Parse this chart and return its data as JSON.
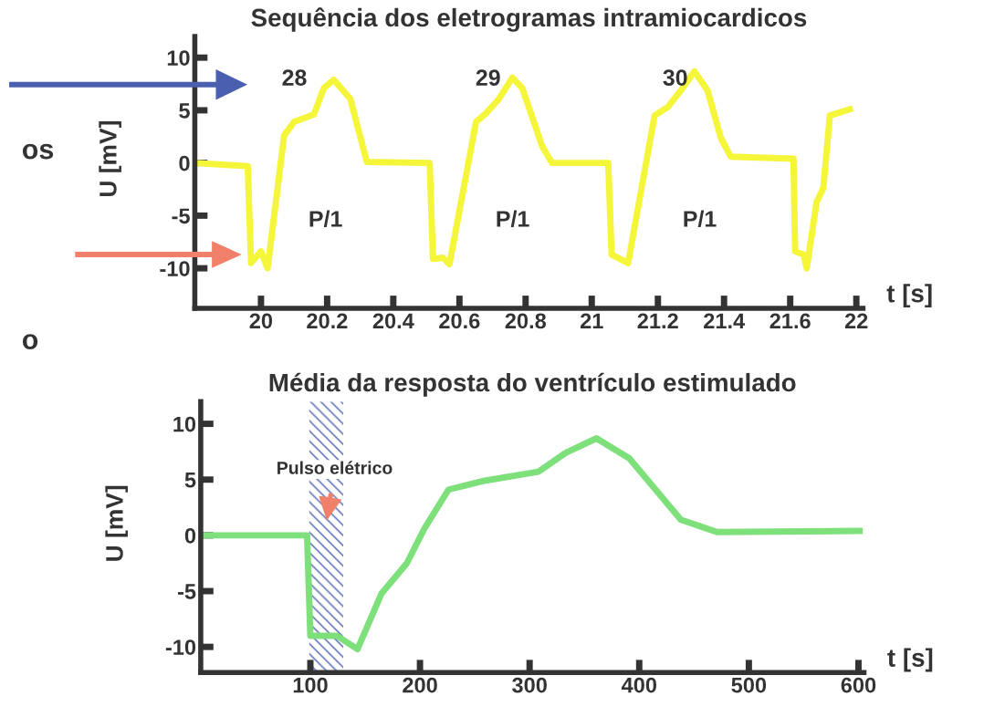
{
  "chart_data": [
    {
      "type": "line",
      "title": "Sequência dos eletrogramas intramiocardicos",
      "xlabel": "t [s]",
      "ylabel": "U [mV]",
      "x": [
        19.8,
        19.96,
        19.97,
        20.0,
        20.02,
        20.07,
        20.1,
        20.16,
        20.19,
        20.22,
        20.27,
        20.32,
        20.51,
        20.52,
        20.55,
        20.57,
        20.65,
        20.68,
        20.72,
        20.76,
        20.79,
        20.85,
        20.88,
        21.05,
        21.06,
        21.11,
        21.19,
        21.23,
        21.27,
        21.31,
        21.35,
        21.39,
        21.42,
        21.61,
        21.615,
        21.64,
        21.65,
        21.68,
        21.7,
        21.72,
        21.78
      ],
      "series": [
        {
          "color": "#f5f53a",
          "values": [
            0,
            -0.3,
            -9.5,
            -8.4,
            -10,
            2.6,
            3.9,
            4.6,
            7.1,
            7.9,
            6.1,
            0.1,
            0,
            -9.1,
            -9,
            -9.6,
            3.9,
            4.7,
            6.1,
            8.1,
            7.1,
            1.6,
            0,
            0,
            -8.7,
            -9.5,
            4.5,
            5.3,
            6.9,
            8.7,
            6.9,
            2.4,
            0.6,
            0.4,
            -8.4,
            -8.7,
            -10,
            -3.7,
            -2.4,
            4.5,
            5.1
          ]
        }
      ],
      "xlim": [
        19.8,
        21.82
      ],
      "ylim": [
        -13.8,
        12
      ],
      "xticks": [
        20,
        20.2,
        20.4,
        20.6,
        20.8,
        21,
        21.2,
        21.4,
        21.6,
        {
          "value": 21.8,
          "label": "22"
        }
      ],
      "yticks": [
        10,
        5,
        0,
        -5,
        -10
      ],
      "grid": false,
      "legend": false,
      "marker": "none",
      "line_style": "solid",
      "annotations": [
        "28",
        "29",
        "30",
        "P/1",
        "P/1",
        "P/1",
        "os",
        "o"
      ]
    },
    {
      "type": "line",
      "title": "Média da resposta do ventrículo estimulado",
      "xlabel": "t [s]",
      "ylabel": "U [mV]",
      "x": [
        0,
        97,
        100,
        124,
        143,
        165,
        188,
        204,
        226,
        259,
        308,
        333,
        361,
        391,
        438,
        471,
        601
      ],
      "series": [
        {
          "color": "#7ee07a",
          "values": [
            0,
            0,
            -9,
            -9,
            -10.2,
            -5.2,
            -2.5,
            0.6,
            4.1,
            4.9,
            5.7,
            7.4,
            8.7,
            6.9,
            1.4,
            0.3,
            0.4
          ]
        }
      ],
      "xlim": [
        0,
        605
      ],
      "ylim": [
        -12.3,
        12
      ],
      "xticks": [
        100,
        200,
        300,
        400,
        500,
        600
      ],
      "yticks": [
        10,
        5,
        0,
        -5,
        -10
      ],
      "bands": [
        {
          "axis": "x",
          "from": 99,
          "to": 130,
          "label": "Pulso elétrico",
          "color": "#4a5fb0"
        }
      ],
      "grid": false,
      "legend": false,
      "marker": "none",
      "line_style": "solid"
    }
  ]
}
